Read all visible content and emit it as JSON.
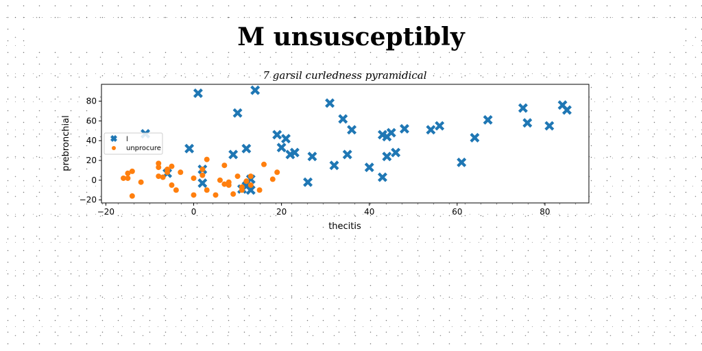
{
  "figure": {
    "suptitle": "M unsusceptibly"
  },
  "chart_data": {
    "type": "scatter",
    "title": "7 garsil curledness pyramidical",
    "xlabel": "thecitis",
    "ylabel": "prebronchial",
    "xlim": [
      -21,
      90
    ],
    "ylim": [
      -23,
      97
    ],
    "xticks": [
      -20,
      0,
      20,
      40,
      60,
      80
    ],
    "yticks": [
      -20,
      0,
      20,
      40,
      60,
      80
    ],
    "grid": false,
    "legend_position": "center-left",
    "series": [
      {
        "name": "l",
        "color": "#1f77b4",
        "marker": "x-bold",
        "x": [
          -11,
          -6,
          -1,
          1,
          2,
          2,
          9,
          10,
          12,
          11,
          12,
          13,
          13,
          14,
          19,
          20,
          21,
          22,
          23,
          26,
          27,
          31,
          32,
          34,
          35,
          36,
          40,
          43,
          43,
          44,
          44,
          45,
          46,
          48,
          54,
          56,
          61,
          64,
          67,
          75,
          76,
          81,
          84,
          85
        ],
        "y": [
          47,
          7,
          32,
          88,
          11,
          -3,
          26,
          68,
          32,
          -9,
          -6,
          -10,
          1,
          91,
          46,
          33,
          42,
          26,
          28,
          -2,
          24,
          78,
          15,
          62,
          26,
          51,
          13,
          3,
          46,
          44,
          24,
          48,
          28,
          52,
          51,
          55,
          18,
          43,
          61,
          73,
          58,
          55,
          76,
          71
        ]
      },
      {
        "name": "unprocure",
        "color": "#ff7f0e",
        "marker": "circle",
        "x": [
          -16,
          -15,
          -15,
          -14,
          -14,
          -12,
          -8,
          -8,
          -8,
          -7,
          -6,
          -6,
          -5,
          -5,
          -4,
          -3,
          0,
          0,
          2,
          2,
          3,
          3,
          5,
          6,
          7,
          7,
          8,
          8,
          9,
          10,
          11,
          11,
          12,
          13,
          13,
          15,
          16,
          18,
          19
        ],
        "y": [
          2,
          7,
          2,
          -16,
          9,
          -2,
          17,
          4,
          13,
          3,
          11,
          8,
          -5,
          14,
          -10,
          8,
          2,
          -15,
          5,
          11,
          21,
          -10,
          -15,
          0,
          -4,
          15,
          -2,
          -5,
          -14,
          4,
          -10,
          -7,
          -1,
          4,
          -5,
          -10,
          16,
          1,
          8
        ]
      }
    ]
  }
}
